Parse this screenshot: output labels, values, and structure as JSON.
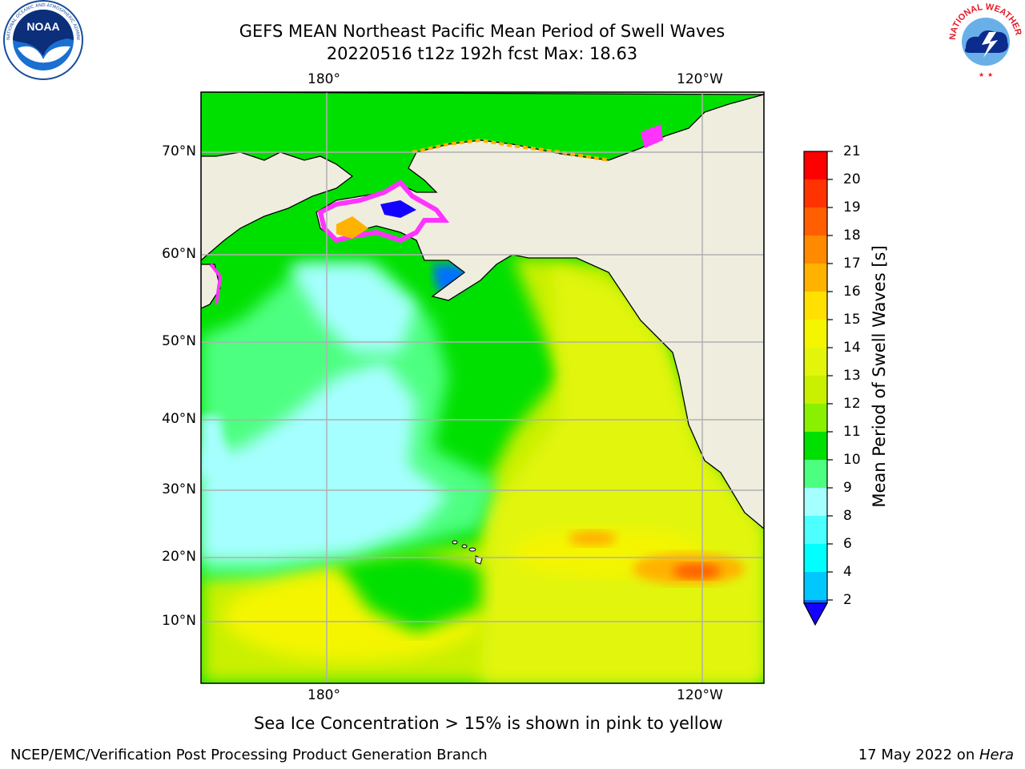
{
  "title": {
    "line1": "GEFS MEAN Northeast Pacific Mean Period of Swell Waves",
    "line2": "20220516 t12z 192h fcst   Max: 18.63"
  },
  "logos": {
    "left": "noaa-logo",
    "left_text": "NOAA",
    "left_ring_text": "NATIONAL OCEANIC AND ATMOSPHERIC ADMINISTRATION · U.S. DEPARTMENT OF COMMERCE",
    "right": "nws-logo",
    "right_ring_text": "NATIONAL WEATHER SERVICE"
  },
  "map": {
    "lon_labels_top": [
      "180°",
      "120°W"
    ],
    "lon_labels_bottom": [
      "180°",
      "120°W"
    ],
    "lat_labels": [
      "70°N",
      "60°N",
      "50°N",
      "40°N",
      "30°N",
      "20°N",
      "10°N"
    ],
    "land_color": "#efedde",
    "grid_color": "#b0b0b0"
  },
  "colorbar": {
    "label": "Mean Period of Swell Waves [s]",
    "ticks": [
      "21",
      "20",
      "19",
      "18",
      "17",
      "16",
      "15",
      "14",
      "13",
      "12",
      "11",
      "10",
      "9",
      "8",
      "6",
      "4",
      "2"
    ],
    "colors": [
      "#ff0000",
      "#ff3300",
      "#ff5f00",
      "#ff8a00",
      "#ffb200",
      "#ffe000",
      "#f5f500",
      "#e2f50a",
      "#c8f000",
      "#88f000",
      "#33e600",
      "#00e000",
      "#4dff80",
      "#a6ffff",
      "#4dffff",
      "#00ffff",
      "#00c8ff",
      "#0070ff",
      "#1400ff"
    ]
  },
  "note": "Sea Ice Concentration > 15% is shown in pink to yellow",
  "footer": {
    "left": "NCEP/EMC/Verification Post Processing Product Generation Branch",
    "right_date": "17 May 2022 on ",
    "right_host": "Hera"
  }
}
